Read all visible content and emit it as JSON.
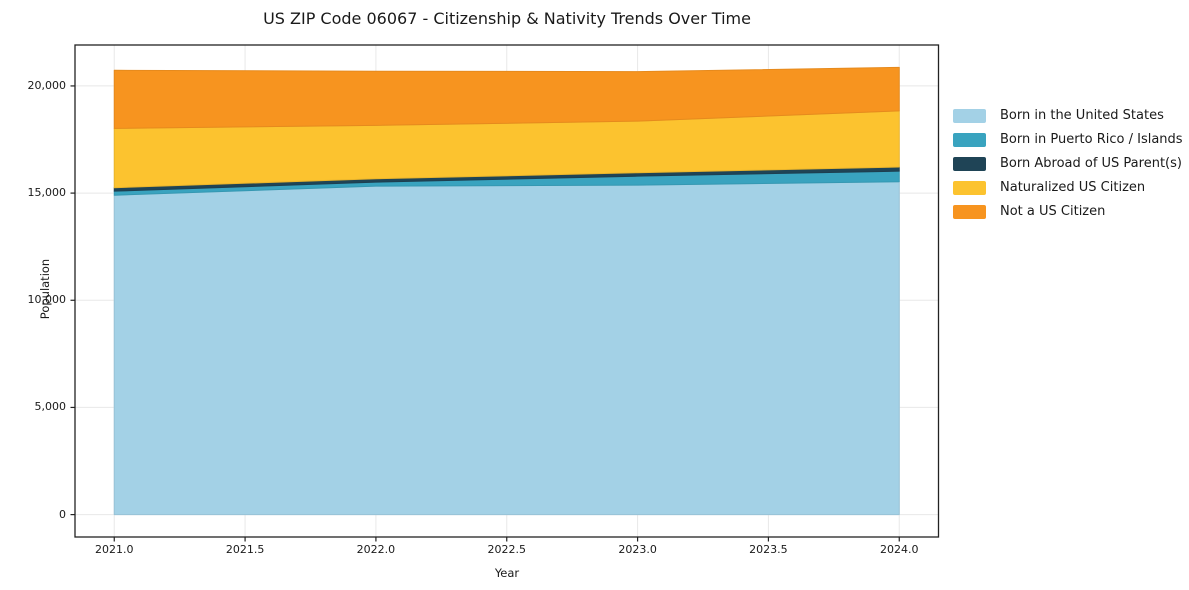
{
  "chart_data": {
    "type": "area",
    "stacked": true,
    "title": "US ZIP Code 06067 - Citizenship & Nativity Trends Over Time",
    "xlabel": "Year",
    "ylabel": "Population",
    "x": [
      2021,
      2022,
      2023,
      2024
    ],
    "series": [
      {
        "name": "Born in the United States",
        "color": "#a3d1e6",
        "values": [
          14900,
          15325,
          15370,
          15530
        ]
      },
      {
        "name": "Born in Puerto Rico / Islands",
        "color": "#39a3bf",
        "values": [
          190,
          185,
          420,
          495
        ]
      },
      {
        "name": "Born Abroad of US Parent(s)",
        "color": "#1f4456",
        "values": [
          160,
          160,
          160,
          190
        ]
      },
      {
        "name": "Naturalized US Citizen",
        "color": "#fcc32f",
        "values": [
          2770,
          2490,
          2410,
          2620
        ]
      },
      {
        "name": "Not a US Citizen",
        "color": "#f7941f",
        "values": [
          2710,
          2525,
          2310,
          2030
        ]
      }
    ],
    "xticks": [
      2021.0,
      2021.5,
      2022.0,
      2022.5,
      2023.0,
      2023.5,
      2024.0
    ],
    "xticklabels": [
      "2021.0",
      "2021.5",
      "2022.0",
      "2022.5",
      "2023.0",
      "2023.5",
      "2024.0"
    ],
    "yticks": [
      0,
      5000,
      10000,
      15000,
      20000
    ],
    "yticklabels": [
      "0",
      "5,000",
      "10,000",
      "15,000",
      "20,000"
    ],
    "xlim": [
      2020.85,
      2024.15
    ],
    "ylim": [
      -1045,
      21910
    ],
    "grid": true,
    "legend_position": "right",
    "colors": {
      "grid": "#e8e8e8",
      "spine": "#222222",
      "text": "#1a1a1a",
      "background": "#ffffff"
    }
  }
}
